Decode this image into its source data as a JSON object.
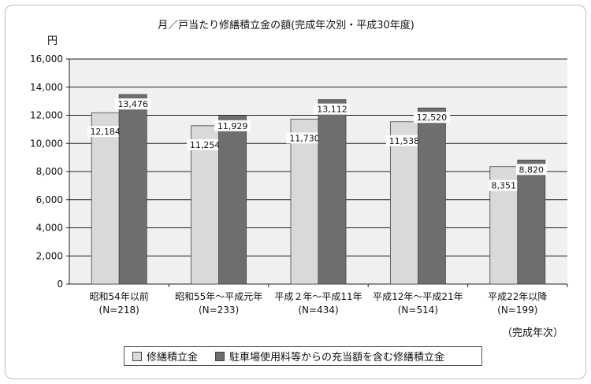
{
  "chart_data": {
    "type": "bar",
    "title": "月／戸当たり修繕積立金の額(完成年次別・平成30年度)",
    "y_unit": "円",
    "x_note": "（完成年次）",
    "ylim": [
      0,
      16000
    ],
    "yticks": [
      "0",
      "2,000",
      "4,000",
      "6,000",
      "8,000",
      "10,000",
      "12,000",
      "14,000",
      "16,000"
    ],
    "categories": [
      {
        "label": "昭和54年以前",
        "n": "(N=218)"
      },
      {
        "label": "昭和55年～平成元年",
        "n": "(N=233)"
      },
      {
        "label": "平成２年～平成11年",
        "n": "(N=434)"
      },
      {
        "label": "平成12年～平成21年",
        "n": "(N=514)"
      },
      {
        "label": "平成22年以降",
        "n": "(N=199)"
      }
    ],
    "series": [
      {
        "name": "修繕積立金",
        "color": "#d9d9d9",
        "values": [
          12184,
          11254,
          11730,
          11538,
          8351
        ],
        "labels": [
          "12,184",
          "11,254",
          "11,730",
          "11,538",
          "8,351"
        ]
      },
      {
        "name": "駐車場使用料等からの充当額を含む修繕積立金",
        "color": "#6e6e6e",
        "values": [
          13476,
          11929,
          13112,
          12520,
          8820
        ],
        "labels": [
          "13,476",
          "11,929",
          "13,112",
          "12,520",
          "8,820"
        ]
      }
    ],
    "grid": true,
    "legend_position": "bottom"
  }
}
